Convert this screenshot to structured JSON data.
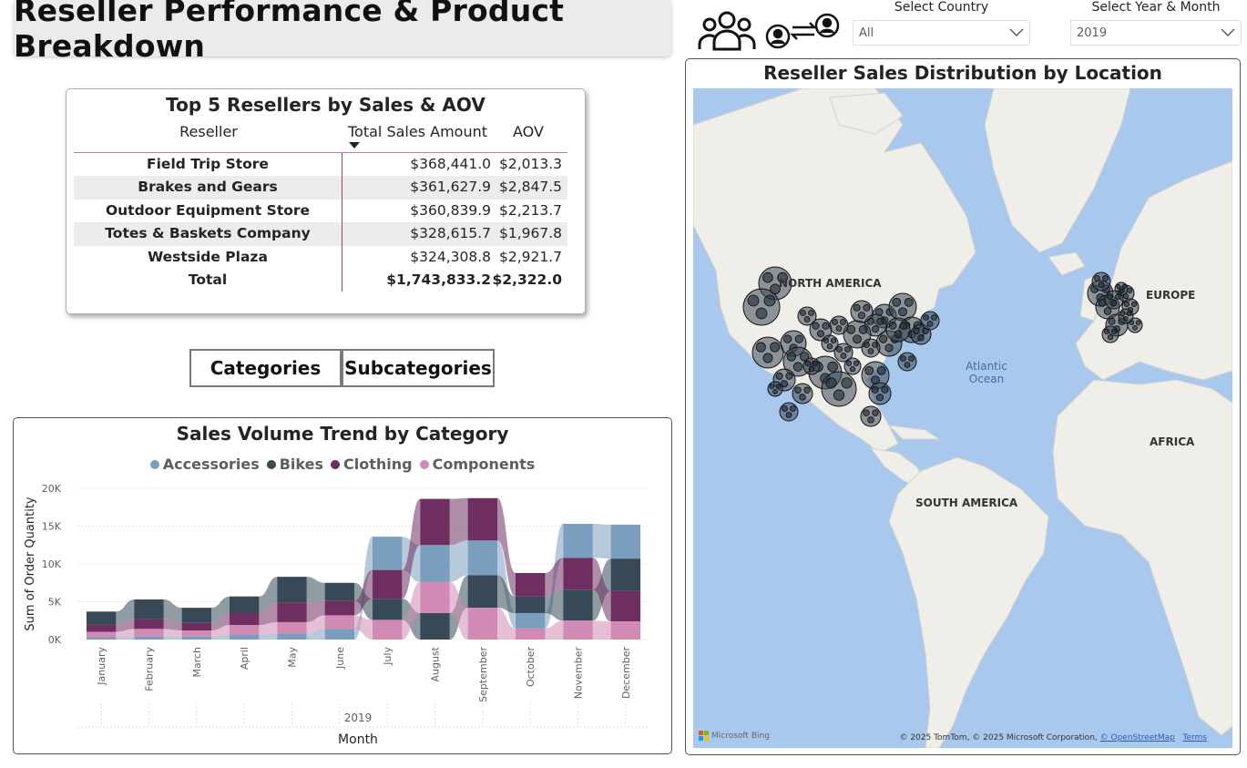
{
  "header": {
    "title": "Reseller Performance & Product Breakdown"
  },
  "icons": {
    "people": "people-group-icon",
    "swap": "user-swap-icon"
  },
  "filters": {
    "country": {
      "label": "Select Country",
      "value": "All"
    },
    "date": {
      "label": "Select Year & Month",
      "value": "2019"
    }
  },
  "top_resellers": {
    "title": "Top 5 Resellers by Sales & AOV",
    "columns": [
      "Reseller",
      "Total Sales Amount",
      "AOV"
    ],
    "rows": [
      {
        "name": "Field Trip Store",
        "sales": "$368,441.0",
        "aov": "$2,013.3"
      },
      {
        "name": "Brakes and Gears",
        "sales": "$361,627.9",
        "aov": "$2,847.5"
      },
      {
        "name": "Outdoor Equipment Store",
        "sales": "$360,839.9",
        "aov": "$2,213.7"
      },
      {
        "name": "Totes & Baskets Company",
        "sales": "$328,615.7",
        "aov": "$1,967.8"
      },
      {
        "name": "Westside Plaza",
        "sales": "$324,308.8",
        "aov": "$2,921.7"
      }
    ],
    "total": {
      "name": "Total",
      "sales": "$1,743,833.2",
      "aov": "$2,322.0"
    }
  },
  "nav": {
    "categories": "Categories",
    "subcategories": "Subcategories"
  },
  "chart_data": {
    "type": "area",
    "title": "Sales Volume Trend by Category",
    "xlabel": "Month",
    "x_group_label": "2019",
    "ylabel": "Sum of Order Quantity",
    "categories": [
      "January",
      "February",
      "March",
      "April",
      "May",
      "June",
      "July",
      "August",
      "September",
      "October",
      "November",
      "December"
    ],
    "series": [
      {
        "name": "Accessories",
        "color": "#7a9ebd",
        "values": [
          300,
          400,
          400,
          600,
          800,
          1400,
          4400,
          4900,
          4600,
          2000,
          4500,
          4500
        ]
      },
      {
        "name": "Bikes",
        "color": "#374856",
        "values": [
          1700,
          2600,
          2000,
          2200,
          3400,
          2400,
          2800,
          3500,
          4300,
          2200,
          4100,
          4300
        ]
      },
      {
        "name": "Clothing",
        "color": "#6e2e60",
        "values": [
          1000,
          1300,
          1000,
          1600,
          2600,
          1900,
          3800,
          6100,
          5600,
          3100,
          4200,
          4000
        ]
      },
      {
        "name": "Components",
        "color": "#d08ab4",
        "values": [
          700,
          1000,
          800,
          1300,
          1500,
          1800,
          2600,
          4100,
          4200,
          1500,
          2500,
          2400
        ]
      }
    ],
    "yticks": [
      "0K",
      "5K",
      "10K",
      "15K",
      "20K"
    ],
    "ylim": [
      0,
      20000
    ],
    "grid": true,
    "legend": "top"
  },
  "map": {
    "title": "Reseller Sales Distribution by Location",
    "labels": {
      "na": "NORTH AMERICA",
      "eu": "EUROPE",
      "af": "AFRICA",
      "sa": "SOUTH AMERICA"
    },
    "ocean": {
      "line1": "Atlantic",
      "line2": "Ocean"
    },
    "logo": "Microsoft Bing",
    "credit": "© 2025 TomTom, © 2025 Microsoft Corporation,",
    "credit_link": "© OpenStreetMap",
    "terms": "Terms"
  }
}
